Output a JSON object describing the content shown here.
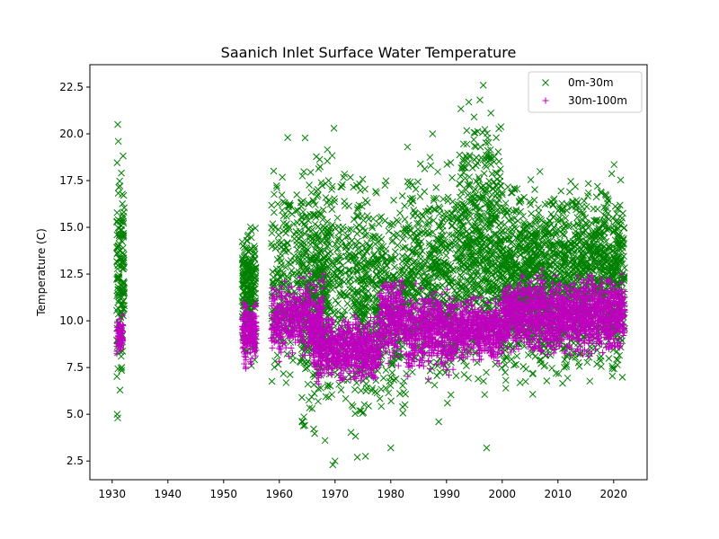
{
  "chart_data": {
    "type": "scatter",
    "title": "Saanich Inlet Surface Water Temperature",
    "xlabel": "",
    "ylabel": "Temperature (C)",
    "xlim": [
      1926,
      2026
    ],
    "ylim": [
      1.5,
      23.7
    ],
    "xticks": [
      1930,
      1940,
      1950,
      1960,
      1970,
      1980,
      1990,
      2000,
      2010,
      2020
    ],
    "yticks": [
      2.5,
      5.0,
      7.5,
      10.0,
      12.5,
      15.0,
      17.5,
      20.0,
      22.5
    ],
    "legend_position": "upper right",
    "series": [
      {
        "name": "0m-30m",
        "marker": "x",
        "color": "#008000",
        "groups": [
          {
            "x": [
              1930.8,
              1932.2
            ],
            "y": [
              4.8,
              20.5
            ],
            "n": 160
          },
          {
            "x": [
              1953.3,
              1955.8
            ],
            "y": [
              7.5,
              16.0
            ],
            "n": 220
          },
          {
            "x": [
              1958.5,
              1969.0
            ],
            "y": [
              4.5,
              19.8
            ],
            "n": 420
          },
          {
            "x": [
              1964.0,
              1976.0
            ],
            "y": [
              2.2,
              20.3
            ],
            "n": 520
          },
          {
            "x": [
              1974.0,
              1982.5
            ],
            "y": [
              3.2,
              18.5
            ],
            "n": 420
          },
          {
            "x": [
              1982.5,
              1992.0
            ],
            "y": [
              4.6,
              20.0
            ],
            "n": 520
          },
          {
            "x": [
              1992.0,
              2000.0
            ],
            "y": [
              5.3,
              22.6
            ],
            "n": 620
          },
          {
            "x": [
              2000.0,
              2022.0
            ],
            "y": [
              5.5,
              19.0
            ],
            "n": 1700
          }
        ],
        "points": [
          {
            "x": 1931.0,
            "y": 20.5
          },
          {
            "x": 1931.1,
            "y": 19.6
          },
          {
            "x": 1930.9,
            "y": 5.0
          },
          {
            "x": 1931.0,
            "y": 4.8
          },
          {
            "x": 1996.6,
            "y": 22.6
          },
          {
            "x": 1994.0,
            "y": 21.7
          },
          {
            "x": 1969.8,
            "y": 20.3
          },
          {
            "x": 1969.6,
            "y": 2.3
          },
          {
            "x": 1970.0,
            "y": 2.5
          },
          {
            "x": 1968.2,
            "y": 3.6
          },
          {
            "x": 1974.0,
            "y": 2.7
          },
          {
            "x": 1980.0,
            "y": 3.2
          },
          {
            "x": 1997.2,
            "y": 3.2
          },
          {
            "x": 1988.6,
            "y": 4.6
          },
          {
            "x": 1955.0,
            "y": 7.6
          },
          {
            "x": 1987.5,
            "y": 20.0
          },
          {
            "x": 1983.0,
            "y": 19.3
          },
          {
            "x": 1961.5,
            "y": 19.8
          }
        ]
      },
      {
        "name": "30m-100m",
        "marker": "+",
        "color": "#bf00bf",
        "groups": [
          {
            "x": [
              1930.8,
              1932.0
            ],
            "y": [
              7.7,
              10.6
            ],
            "n": 70
          },
          {
            "x": [
              1953.3,
              1955.9
            ],
            "y": [
              7.3,
              11.4
            ],
            "n": 200
          },
          {
            "x": [
              1958.5,
              1968.0
            ],
            "y": [
              7.5,
              12.7
            ],
            "n": 500
          },
          {
            "x": [
              1966.0,
              1978.0
            ],
            "y": [
              6.3,
              10.6
            ],
            "n": 700
          },
          {
            "x": [
              1978.0,
              1982.5
            ],
            "y": [
              7.2,
              13.0
            ],
            "n": 280
          },
          {
            "x": [
              1982.5,
              1992.0
            ],
            "y": [
              6.6,
              12.3
            ],
            "n": 560
          },
          {
            "x": [
              1992.0,
              2000.0
            ],
            "y": [
              7.4,
              11.6
            ],
            "n": 480
          },
          {
            "x": [
              2000.0,
              2022.0
            ],
            "y": [
              7.7,
              13.0
            ],
            "n": 1500
          }
        ]
      }
    ]
  }
}
